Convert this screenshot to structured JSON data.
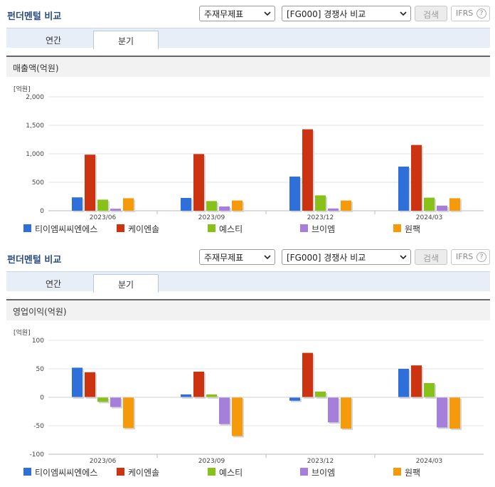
{
  "panels": [
    {
      "title": "펀더멘털 비교",
      "select1": "주재무제표",
      "select2": "[FG000] 경쟁사 비교",
      "search": "검색",
      "ifrs": "IFRS",
      "help": "?",
      "tabs": [
        "연간",
        "분기"
      ],
      "chart_title": "매출액(억원)",
      "unit": "[억원]"
    },
    {
      "title": "펀더멘털 비교",
      "select1": "주재무제표",
      "select2": "[FG000] 경쟁사 비교",
      "search": "검색",
      "ifrs": "IFRS",
      "help": "?",
      "tabs": [
        "연간",
        "분기"
      ],
      "chart_title": "영업이익(억원)",
      "unit": "[억원]"
    }
  ],
  "series_legend": [
    {
      "name": "티이엠씨씨엔에스",
      "color": "#2f6fd9"
    },
    {
      "name": "케이엔솔",
      "color": "#cc3311"
    },
    {
      "name": "예스티",
      "color": "#88c11a"
    },
    {
      "name": "브이엠",
      "color": "#a57fd9"
    },
    {
      "name": "원팩",
      "color": "#f59a0a"
    }
  ],
  "chart_data": [
    {
      "type": "bar",
      "categories": [
        "2023/06",
        "2023/09",
        "2023/12",
        "2024/03"
      ],
      "ylim": [
        0,
        2000
      ],
      "yticks": [
        "0",
        "500",
        "1,000",
        "1,500",
        "2,000"
      ],
      "ytick_values": [
        0,
        500,
        1000,
        1500,
        2000
      ],
      "series": [
        {
          "name": "티이엠씨씨엔에스",
          "values": [
            235,
            225,
            600,
            775
          ]
        },
        {
          "name": "케이엔솔",
          "values": [
            985,
            995,
            1430,
            1155
          ]
        },
        {
          "name": "예스티",
          "values": [
            195,
            170,
            270,
            230
          ]
        },
        {
          "name": "브이엠",
          "values": [
            35,
            75,
            40,
            90
          ]
        },
        {
          "name": "원팩",
          "values": [
            220,
            180,
            180,
            220
          ]
        }
      ]
    },
    {
      "type": "bar",
      "categories": [
        "2023/06",
        "2023/09",
        "2023/12",
        "2024/03"
      ],
      "ylim": [
        -100,
        100
      ],
      "yticks": [
        "-100",
        "-50",
        "0",
        "50",
        "100"
      ],
      "ytick_values": [
        -100,
        -50,
        0,
        50,
        100
      ],
      "series": [
        {
          "name": "티이엠씨씨엔에스",
          "values": [
            52,
            5,
            -6,
            50
          ]
        },
        {
          "name": "케이엔솔",
          "values": [
            44,
            45,
            78,
            56
          ]
        },
        {
          "name": "예스티",
          "values": [
            -8,
            5,
            10,
            25
          ]
        },
        {
          "name": "브이엠",
          "values": [
            -17,
            -47,
            -44,
            -53
          ]
        },
        {
          "name": "원팩",
          "values": [
            -54,
            -68,
            -55,
            -55
          ]
        }
      ]
    }
  ]
}
